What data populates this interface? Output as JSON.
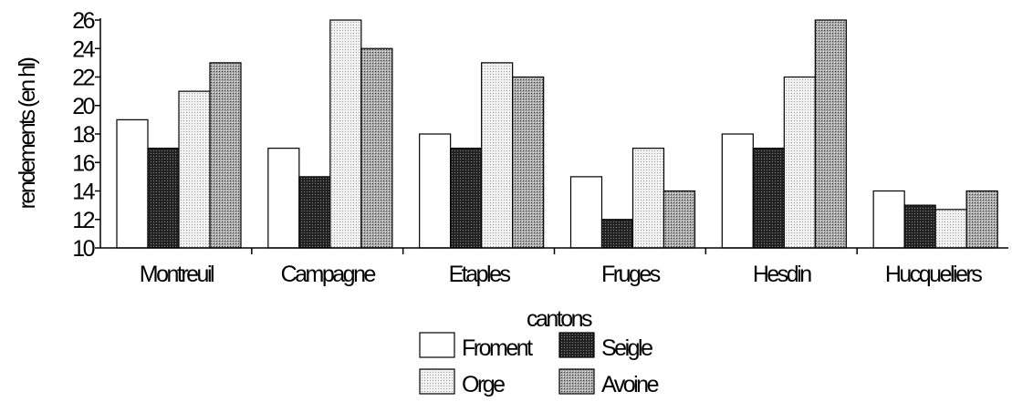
{
  "chart_data": {
    "type": "bar",
    "title": "",
    "xlabel": "cantons",
    "ylabel": "rendements (en hl)",
    "ylim": [
      10,
      26
    ],
    "yticks": [
      10,
      12,
      14,
      16,
      18,
      20,
      22,
      24,
      26
    ],
    "grid": false,
    "legend_position": "bottom-center",
    "categories": [
      "Montreuil",
      "Campagne",
      "Etaples",
      "Fruges",
      "Hesdin",
      "Hucqueliers"
    ],
    "series": [
      {
        "name": "Froment",
        "pattern": "white",
        "values": [
          19,
          17,
          18,
          15,
          18,
          14
        ]
      },
      {
        "name": "Seigle",
        "pattern": "dense-dark",
        "values": [
          17,
          15,
          17,
          12,
          17,
          13
        ]
      },
      {
        "name": "Orge",
        "pattern": "light-dotted",
        "values": [
          21,
          26,
          23,
          17,
          22,
          12.7
        ]
      },
      {
        "name": "Avoine",
        "pattern": "medium-crosshatch",
        "values": [
          23,
          24,
          22,
          14,
          26,
          14
        ]
      }
    ]
  }
}
